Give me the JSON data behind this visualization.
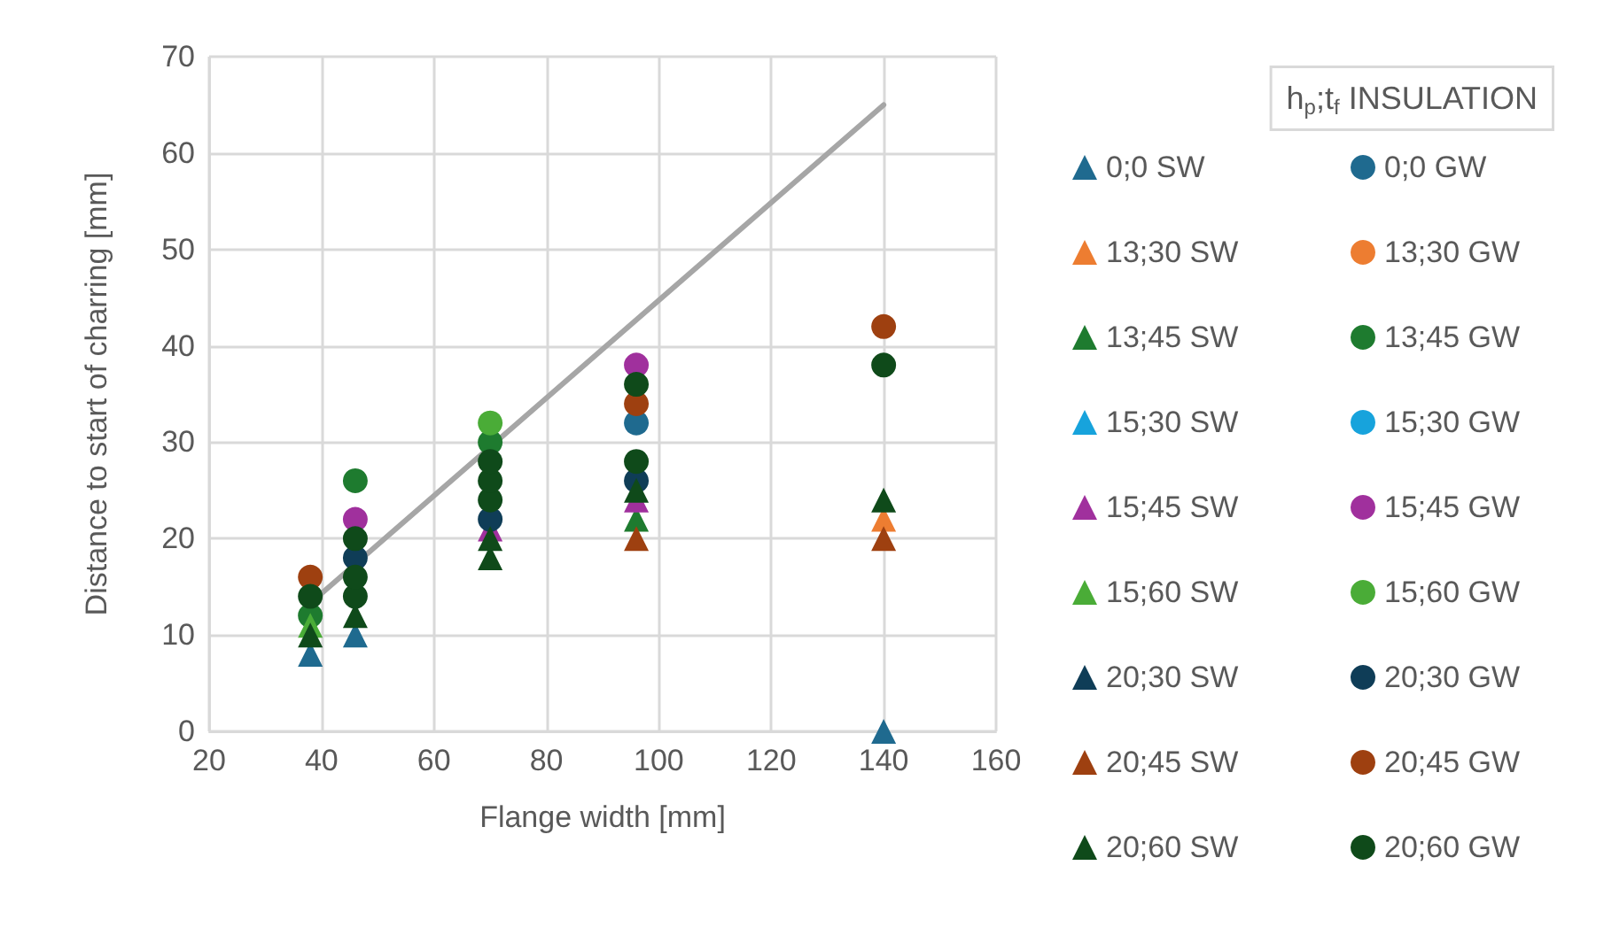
{
  "chart_data": {
    "type": "scatter",
    "xlabel": "Flange width [mm]",
    "ylabel": "Distance to start of charring [mm]",
    "legend_title": "h$_{p}$;t$_{f}$ INSULATION",
    "xlim": [
      20,
      160
    ],
    "xticks": [
      20,
      40,
      60,
      80,
      100,
      120,
      140,
      160
    ],
    "ylim": [
      0,
      70
    ],
    "yticks": [
      0,
      10,
      20,
      30,
      40,
      50,
      60,
      70
    ],
    "grid": true,
    "legend": "right",
    "series": [
      {
        "name": "0;0 SW",
        "color": "#1f6a8f",
        "marker": "triangle",
        "x": [
          38,
          46,
          140
        ],
        "values": [
          8,
          10,
          0
        ]
      },
      {
        "name": "0;0 GW",
        "color": "#1f6a8f",
        "marker": "circle",
        "x": [
          96
        ],
        "values": [
          32
        ]
      },
      {
        "name": "13;30 SW",
        "color": "#ed7d31",
        "marker": "triangle",
        "x": [
          140
        ],
        "values": [
          22
        ]
      },
      {
        "name": "13;30 GW",
        "color": "#ed7d31",
        "marker": "circle"
      },
      {
        "name": "13;45 SW",
        "color": "#1e7b2f",
        "marker": "triangle",
        "x": [
          96
        ],
        "values": [
          22
        ]
      },
      {
        "name": "13;45 GW",
        "color": "#1e7b2f",
        "marker": "circle",
        "x": [
          38,
          46,
          70
        ],
        "values": [
          12,
          26,
          30
        ]
      },
      {
        "name": "15;30 SW",
        "color": "#17a3dc",
        "marker": "triangle"
      },
      {
        "name": "15;30 GW",
        "color": "#17a3dc",
        "marker": "circle"
      },
      {
        "name": "15;45 SW",
        "color": "#a0309d",
        "marker": "triangle",
        "x": [
          70,
          96
        ],
        "values": [
          21,
          24
        ]
      },
      {
        "name": "15;45 GW",
        "color": "#a0309d",
        "marker": "circle",
        "x": [
          46,
          96
        ],
        "values": [
          22,
          38
        ]
      },
      {
        "name": "15;60 SW",
        "color": "#4aac37",
        "marker": "triangle",
        "x": [
          38
        ],
        "values": [
          11
        ]
      },
      {
        "name": "15;60 GW",
        "color": "#4aac37",
        "marker": "circle",
        "x": [
          70
        ],
        "values": [
          32
        ]
      },
      {
        "name": "20;30 SW",
        "color": "#0f3d57",
        "marker": "triangle"
      },
      {
        "name": "20;30 GW",
        "color": "#0f3d57",
        "marker": "circle",
        "x": [
          46,
          70,
          96
        ],
        "values": [
          18,
          22,
          26
        ]
      },
      {
        "name": "20;45 SW",
        "color": "#9e4010",
        "marker": "triangle",
        "x": [
          96,
          140
        ],
        "values": [
          20,
          20
        ]
      },
      {
        "name": "20;45 GW",
        "color": "#9e4010",
        "marker": "circle",
        "x": [
          38,
          96,
          140
        ],
        "values": [
          16,
          34,
          42
        ]
      },
      {
        "name": "20;60 SW",
        "color": "#0f4a1a",
        "marker": "triangle",
        "x": [
          38,
          46,
          70,
          70,
          96,
          140
        ],
        "values": [
          10,
          12,
          18,
          20,
          25,
          24
        ]
      },
      {
        "name": "20;60 GW",
        "color": "#0f4a1a",
        "marker": "circle",
        "x": [
          38,
          46,
          46,
          46,
          70,
          70,
          70,
          96,
          96,
          140
        ],
        "values": [
          14,
          14,
          16,
          20,
          24,
          26,
          28,
          28,
          36,
          38
        ]
      },
      {
        "type": "line",
        "color": "#a6a6a6",
        "marker": "none",
        "x": [
          40,
          140
        ],
        "values": [
          14.3,
          65
        ]
      }
    ]
  }
}
